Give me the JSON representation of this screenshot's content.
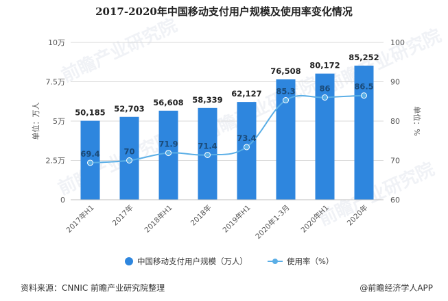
{
  "title": "2017-2020年中国移动支付用户规模及使用率变化情况",
  "source": "资料来源：CNNIC 前瞻产业研究院整理",
  "brand": "@前瞻经济学人APP",
  "watermark": "前瞻产业研究院",
  "colors": {
    "bar": "#2e86de",
    "line": "#5aaee6",
    "axis_text": "#555555",
    "grid": "#d9d9d9"
  },
  "chart_data": {
    "type": "bar",
    "categories": [
      "2017年H1",
      "2017年",
      "2018年H1",
      "2018年",
      "2019年H1",
      "2020年1-3月",
      "2020年H1",
      "2020年"
    ],
    "series": [
      {
        "name": "中国移动支付用户规模（万人）",
        "type": "bar",
        "axis": "left",
        "values": [
          50185,
          52703,
          56608,
          58339,
          62127,
          76508,
          80172,
          85252
        ],
        "labels": [
          "50,185",
          "52,703",
          "56,608",
          "58,339",
          "62,127",
          "76,508",
          "80,172",
          "85,252"
        ]
      },
      {
        "name": "使用率（%）",
        "type": "line",
        "axis": "right",
        "values": [
          69.4,
          70,
          71.9,
          71.4,
          73.4,
          85.3,
          86,
          86.5
        ],
        "labels": [
          "69.4",
          "70",
          "71.9",
          "71.4",
          "73.4",
          "85.3",
          "86",
          "86.5"
        ]
      }
    ],
    "ylabel": "单位：万人",
    "y2label": "单位：%",
    "ylim": [
      0,
      100000
    ],
    "y2lim": [
      60,
      100
    ],
    "yticks": [
      "0",
      "2.5万",
      "5万",
      "7.5万",
      "10万"
    ],
    "y2ticks": [
      "60",
      "70",
      "80",
      "90",
      "100"
    ],
    "grid": true,
    "legend": "bottom"
  }
}
